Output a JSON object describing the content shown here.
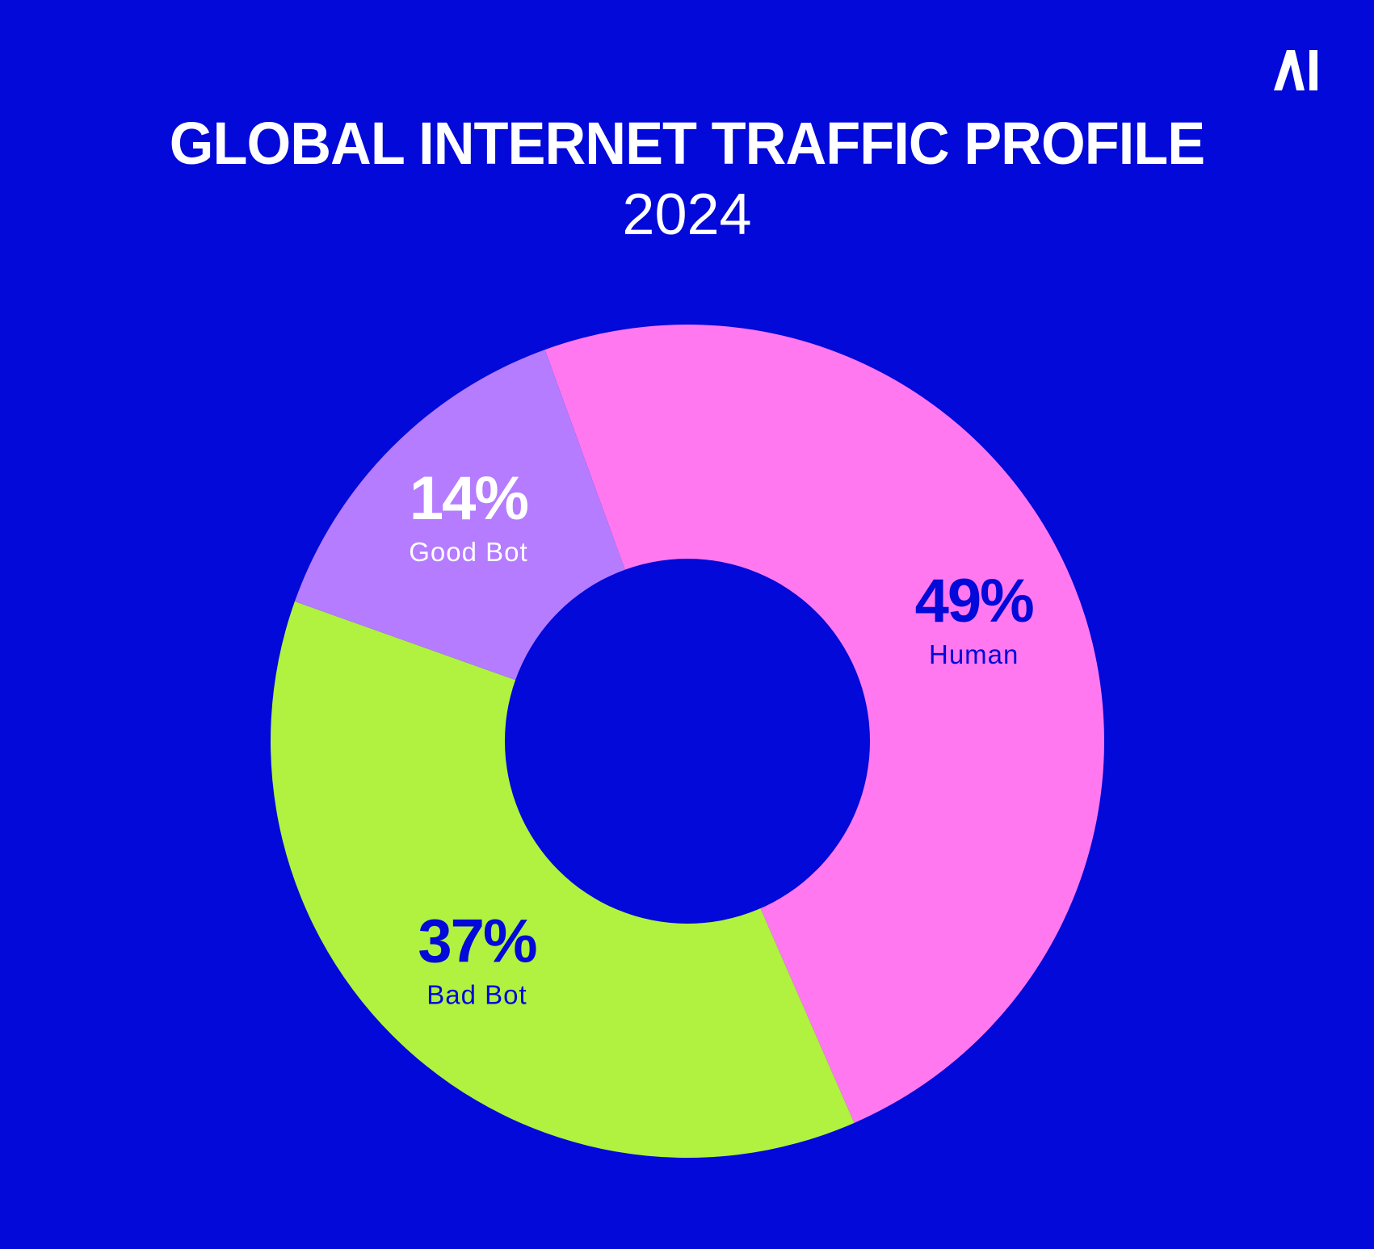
{
  "brand": {
    "logo_text": "AI",
    "logo_color": "#ffffff"
  },
  "colors": {
    "background": "#0209d8",
    "hole": "#0209d8"
  },
  "chart_data": {
    "type": "pie",
    "donut": true,
    "title": "GLOBAL INTERNET TRAFFIC PROFILE",
    "subtitle": "2024",
    "unit": "%",
    "slices": [
      {
        "label": "Human",
        "value": 49,
        "display": "49%",
        "color": "#ff78ef",
        "label_color": "#0209d8"
      },
      {
        "label": "Bad Bot",
        "value": 37,
        "display": "37%",
        "color": "#b0f23f",
        "label_color": "#0209d8"
      },
      {
        "label": "Good Bot",
        "value": 14,
        "display": "14%",
        "color": "#b57cff",
        "label_color": "#ffffff"
      }
    ],
    "legend": "none",
    "grid": false
  }
}
